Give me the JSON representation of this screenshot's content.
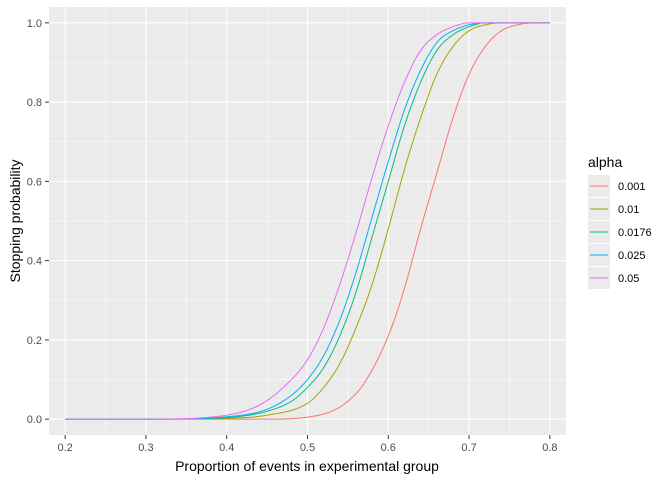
{
  "chart_data": {
    "type": "line",
    "title": "",
    "xlabel": "Proportion of events in experimental group",
    "ylabel": "Stopping probability",
    "xlim": [
      0.18,
      0.82
    ],
    "ylim": [
      -0.04,
      1.04
    ],
    "x_ticks": [
      0.2,
      0.3,
      0.4,
      0.5,
      0.6,
      0.7,
      0.8
    ],
    "y_ticks": [
      0.0,
      0.2,
      0.4,
      0.6,
      0.8,
      1.0
    ],
    "x_tick_labels": [
      "0.2",
      "0.3",
      "0.4",
      "0.5",
      "0.6",
      "0.7",
      "0.8"
    ],
    "y_tick_labels": [
      "0.0",
      "0.2",
      "0.4",
      "0.6",
      "0.8",
      "1.0"
    ],
    "grid": true,
    "legend": {
      "title": "alpha",
      "position": "right"
    },
    "series": [
      {
        "name": "0.001",
        "color": "#F8766D",
        "x": [
          0.2,
          0.3,
          0.4,
          0.45,
          0.5,
          0.53,
          0.55,
          0.57,
          0.6,
          0.62,
          0.64,
          0.66,
          0.68,
          0.7,
          0.72,
          0.74,
          0.76,
          0.78,
          0.8
        ],
        "y": [
          0.0,
          0.0,
          0.0,
          0.0,
          0.005,
          0.02,
          0.045,
          0.09,
          0.21,
          0.33,
          0.48,
          0.62,
          0.76,
          0.87,
          0.94,
          0.98,
          0.995,
          1.0,
          1.0
        ]
      },
      {
        "name": "0.01",
        "color": "#A3A500",
        "x": [
          0.2,
          0.3,
          0.4,
          0.45,
          0.5,
          0.52,
          0.54,
          0.56,
          0.58,
          0.6,
          0.62,
          0.64,
          0.66,
          0.68,
          0.7,
          0.72,
          0.74,
          0.76,
          0.8
        ],
        "y": [
          0.0,
          0.0,
          0.002,
          0.01,
          0.04,
          0.08,
          0.14,
          0.23,
          0.34,
          0.48,
          0.63,
          0.76,
          0.87,
          0.94,
          0.98,
          0.995,
          1.0,
          1.0,
          1.0
        ]
      },
      {
        "name": "0.0176",
        "color": "#00BF7D",
        "x": [
          0.2,
          0.3,
          0.4,
          0.45,
          0.48,
          0.5,
          0.52,
          0.54,
          0.56,
          0.58,
          0.6,
          0.62,
          0.64,
          0.66,
          0.68,
          0.7,
          0.72,
          0.76,
          0.8
        ],
        "y": [
          0.0,
          0.0,
          0.004,
          0.02,
          0.045,
          0.08,
          0.13,
          0.21,
          0.32,
          0.46,
          0.6,
          0.74,
          0.85,
          0.93,
          0.97,
          0.99,
          1.0,
          1.0,
          1.0
        ]
      },
      {
        "name": "0.025",
        "color": "#00B0F6",
        "x": [
          0.2,
          0.3,
          0.4,
          0.45,
          0.48,
          0.5,
          0.52,
          0.54,
          0.56,
          0.58,
          0.6,
          0.62,
          0.64,
          0.66,
          0.68,
          0.7,
          0.72,
          0.76,
          0.8
        ],
        "y": [
          0.0,
          0.0,
          0.006,
          0.025,
          0.06,
          0.1,
          0.16,
          0.25,
          0.37,
          0.51,
          0.65,
          0.78,
          0.88,
          0.95,
          0.98,
          0.995,
          1.0,
          1.0,
          1.0
        ]
      },
      {
        "name": "0.05",
        "color": "#E76BF3",
        "x": [
          0.2,
          0.3,
          0.4,
          0.44,
          0.47,
          0.5,
          0.52,
          0.54,
          0.56,
          0.58,
          0.6,
          0.62,
          0.64,
          0.66,
          0.68,
          0.7,
          0.72,
          0.76,
          0.8
        ],
        "y": [
          0.0,
          0.0,
          0.01,
          0.035,
          0.08,
          0.15,
          0.23,
          0.34,
          0.47,
          0.61,
          0.74,
          0.85,
          0.93,
          0.97,
          0.99,
          1.0,
          1.0,
          1.0,
          1.0
        ]
      }
    ]
  }
}
